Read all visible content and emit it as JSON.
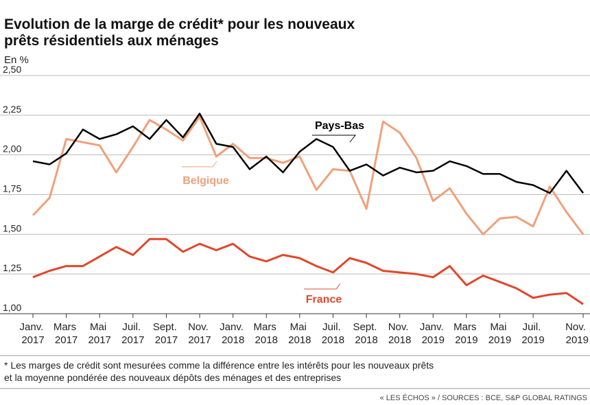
{
  "chart_data": {
    "type": "line",
    "title": "Evolution de la marge de crédit* pour les nouveaux prêts résidentiels aux ménages",
    "y_unit": "En %",
    "categories": [
      "Janv. 2017",
      null,
      "Mars 2017",
      null,
      "Mai 2017",
      null,
      "Juil. 2017",
      null,
      "Sept. 2017",
      null,
      "Nov. 2017",
      null,
      "Janv. 2018",
      null,
      "Mars 2018",
      null,
      "Mai 2018",
      null,
      "Juil. 2018",
      null,
      "Sept. 2018",
      null,
      "Nov. 2018",
      null,
      "Janv. 2019",
      null,
      "Mars 2019",
      null,
      "Mai 2019",
      null,
      "Juil. 2019",
      null,
      null,
      null,
      "Nov. 2019"
    ],
    "series": [
      {
        "name": "Pays-Bas",
        "color": "#000000",
        "values": [
          1.96,
          1.94,
          2.01,
          2.16,
          2.1,
          2.13,
          2.18,
          2.1,
          2.22,
          2.11,
          2.26,
          2.07,
          2.05,
          1.91,
          1.99,
          1.89,
          2.02,
          2.1,
          2.05,
          1.9,
          1.94,
          1.87,
          1.92,
          1.89,
          1.9,
          1.96,
          1.93,
          1.88,
          1.88,
          1.83,
          1.81,
          1.76,
          1.9,
          1.76,
          null
        ]
      },
      {
        "name": "Belgique",
        "color": "#f0a07a",
        "values": [
          1.62,
          1.73,
          2.1,
          2.08,
          2.06,
          1.89,
          2.05,
          2.22,
          2.16,
          2.09,
          2.24,
          1.99,
          2.07,
          1.98,
          1.98,
          1.95,
          1.99,
          1.78,
          1.91,
          1.9,
          1.66,
          2.21,
          2.14,
          1.98,
          1.71,
          1.79,
          1.63,
          1.5,
          1.6,
          1.61,
          1.55,
          1.8,
          1.64,
          1.5,
          null
        ]
      },
      {
        "name": "France",
        "color": "#e0472a",
        "values": [
          1.23,
          1.27,
          1.3,
          1.3,
          1.36,
          1.42,
          1.37,
          1.47,
          1.47,
          1.39,
          1.44,
          1.4,
          1.44,
          1.36,
          1.33,
          1.37,
          1.35,
          1.3,
          1.26,
          1.35,
          1.32,
          1.27,
          1.26,
          1.25,
          1.23,
          1.3,
          1.18,
          1.24,
          1.2,
          1.16,
          1.1,
          1.12,
          1.13,
          1.06,
          null
        ]
      }
    ],
    "ylim": [
      1.0,
      2.5
    ],
    "yticks": [
      {
        "value": 1.0,
        "label": "1,00"
      },
      {
        "value": 1.25,
        "label": "1,25"
      },
      {
        "value": 1.5,
        "label": "1,50"
      },
      {
        "value": 1.75,
        "label": "1,75"
      },
      {
        "value": 2.0,
        "label": "2,00"
      },
      {
        "value": 2.25,
        "label": "2,25"
      },
      {
        "value": 2.5,
        "label": "2,50"
      }
    ],
    "grid": true,
    "footnote": [
      "* Les marges de crédit sont mesurées comme la différence entre les intérêts pour les nouveaux prêts",
      "et la moyenne pondérée des nouveaux dépôts des ménages et des entreprises"
    ],
    "source": "« LES ÉCHOS » / SOURCES : BCE, S&P GLOBAL RATINGS"
  }
}
